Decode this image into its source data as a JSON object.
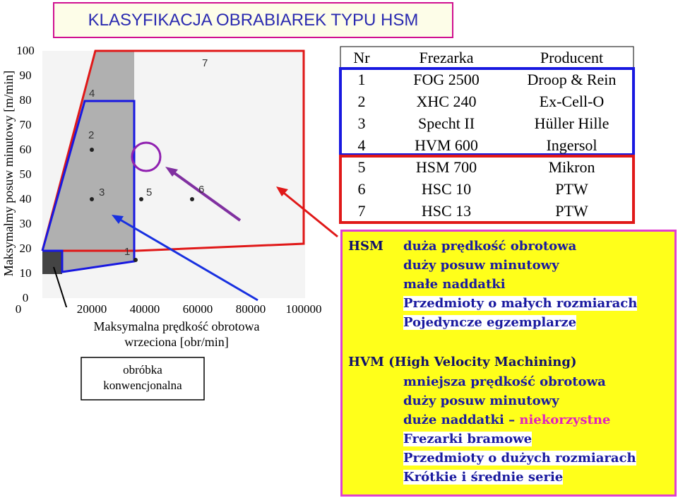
{
  "title": "KLASYFIKACJA OBRABIAREK TYPU HSM",
  "chart": {
    "y_label": "Maksymalmy posuw minutowy [m/min]",
    "yticks": [
      "100",
      "90",
      "80",
      "70",
      "60",
      "50",
      "40",
      "30",
      "20",
      "10",
      "0"
    ],
    "xticks": [
      "0",
      "20000",
      "40000",
      "60000",
      "80000",
      "100000"
    ],
    "x_label": [
      "Maksymalna prędkość obrotowa",
      "wrzeciona [obr/min]"
    ],
    "points": [
      "1",
      "2",
      "3",
      "4",
      "5",
      "6",
      "7"
    ],
    "conventional": [
      "obróbka",
      "konwencjonalna"
    ]
  },
  "table": {
    "header": [
      "Nr",
      "Frezarka",
      "Producent"
    ],
    "rows": [
      [
        "1",
        "FOG 2500",
        "Droop & Rein"
      ],
      [
        "2",
        "XHC 240",
        "Ex-Cell-O"
      ],
      [
        "3",
        "Specht II",
        "Hüller Hille"
      ],
      [
        "4",
        "HVM 600",
        "Ingersol"
      ],
      [
        "5",
        "HSM 700",
        "Mikron"
      ],
      [
        "6",
        "HSC 10",
        "PTW"
      ],
      [
        "7",
        "HSC 13",
        "PTW"
      ]
    ]
  },
  "hsm": {
    "label": "HSM",
    "lines": [
      "duża prędkość obrotowa",
      "duży posuw minutowy",
      "małe naddatki",
      "Przedmioty o małych rozmiarach",
      "Pojedyncze egzemplarze"
    ]
  },
  "hvm": {
    "label": "HVM (High Velocity Machining)",
    "lines": [
      "mniejsza prędkość obrotowa",
      "duży posuw minutowy",
      {
        "text": "duże naddatki –",
        "highlight": "niekorzystne"
      },
      "Frezarki bramowe",
      "Przedmioty o dużych rozmiarach",
      "Krótkie i średnie serie"
    ]
  }
}
